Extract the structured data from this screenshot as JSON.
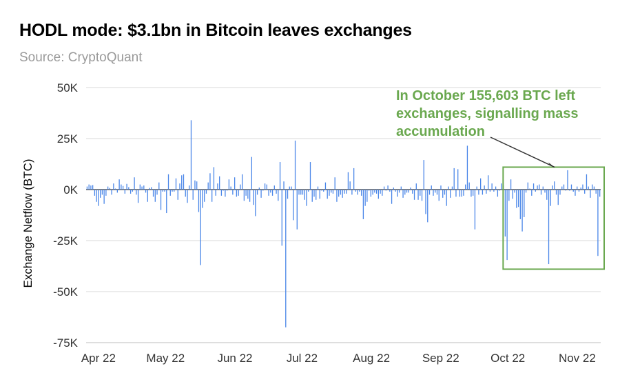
{
  "header": {
    "title": "HODL mode: $3.1bn in Bitcoin leaves exchanges",
    "source": "Source: CryptoQuant"
  },
  "chart_data": {
    "type": "bar",
    "title": "HODL mode: $3.1bn in Bitcoin leaves exchanges",
    "subtitle": "Source: CryptoQuant",
    "ylabel": "Exchange Netflow (BTC)",
    "xlabel": "",
    "ylim": [
      -75000,
      50000
    ],
    "yticks": [
      50000,
      25000,
      0,
      -25000,
      -50000,
      -75000
    ],
    "ytick_labels": [
      "50K",
      "25K",
      "0K",
      "-25K",
      "-50K",
      "-75K"
    ],
    "xtick_labels": [
      "Apr 22",
      "May 22",
      "Jun 22",
      "Jul 22",
      "Aug 22",
      "Sep 22",
      "Oct 22",
      "Nov 22"
    ],
    "grid": true,
    "color": "#4a86e8",
    "x_start": "2022-03-28",
    "x_end": "2022-11-13",
    "annotation": "In October 155,603 BTC left exchanges, signalling mass accumulation",
    "annotation_color": "#6aa84f",
    "highlight_range": [
      "2022-10-01",
      "2022-11-13"
    ],
    "highlight_ylim": [
      -39000,
      11000
    ],
    "values": [
      1500,
      2500,
      2000,
      2200,
      -3000,
      -6000,
      -8000,
      -4000,
      -2500,
      -7000,
      -3000,
      1500,
      800,
      -2500,
      3000,
      500,
      -1500,
      5000,
      2500,
      1800,
      -2000,
      2800,
      1200,
      -2000,
      -1000,
      6000,
      -2500,
      -6500,
      2500,
      1500,
      2000,
      -1500,
      -6000,
      800,
      1200,
      -3500,
      -6000,
      -2500,
      3500,
      -10000,
      -1000,
      -1000,
      -11500,
      7500,
      -3000,
      -1000,
      -1000,
      5500,
      -5000,
      3000,
      7000,
      7500,
      -3500,
      -6500,
      2000,
      34000,
      -5000,
      4500,
      4000,
      -11000,
      -37000,
      -9000,
      -6000,
      -2000,
      3500,
      8000,
      -6000,
      11000,
      -3000,
      3000,
      6500,
      -3000,
      -500,
      -3500,
      -500,
      5000,
      1500,
      -2500,
      6000,
      -3500,
      -3000,
      2500,
      7500,
      -5500,
      -3000,
      -4500,
      -6000,
      16000,
      -7500,
      -13000,
      -2500,
      1000,
      -4000,
      -500,
      3000,
      2500,
      -3000,
      -1500,
      -3000,
      2000,
      -2000,
      -5500,
      13500,
      -27500,
      4000,
      -67500,
      -4500,
      1500,
      1500,
      -15000,
      24000,
      -19500,
      -2500,
      -2500,
      -2500,
      -5000,
      -8000,
      -1000,
      13500,
      -6000,
      -3500,
      -5000,
      1500,
      -4500,
      -500,
      -1000,
      3500,
      -4500,
      -3000,
      -1500,
      -2000,
      6000,
      -6000,
      -3500,
      -2500,
      -4000,
      -2000,
      -2000,
      8500,
      4000,
      -2500,
      10500,
      -1000,
      -2500,
      -1000,
      -3000,
      -14500,
      -8000,
      -6000,
      -500,
      -3500,
      -2500,
      -1500,
      -2000,
      -4500,
      -2000,
      -3000,
      1500,
      -500,
      2000,
      -1000,
      -7000,
      1000,
      -1000,
      -3500,
      -1500,
      1500,
      -4000,
      -2500,
      -1500,
      -1500,
      1000,
      -2000,
      -5000,
      3000,
      -5000,
      -3000,
      -5500,
      14500,
      -12000,
      -16000,
      -2500,
      2000,
      -3000,
      -1500,
      -2500,
      -5500,
      2000,
      -4000,
      -2500,
      -8000,
      1500,
      -4000,
      1500,
      10500,
      -3500,
      10000,
      -3500,
      -3500,
      -3000,
      2500,
      21500,
      3500,
      -3500,
      -3000,
      -19500,
      1500,
      -2500,
      5500,
      -2500,
      2000,
      -2000,
      7000,
      -1000,
      3000,
      -1000,
      1500,
      -3500,
      -500,
      3000,
      2000,
      -23000,
      -34500,
      -5500,
      5000,
      -4500,
      -1500,
      -9000,
      -8500,
      -14500,
      -20500,
      -13500,
      -1500,
      3500,
      500,
      -3000,
      3000,
      -1000,
      2000,
      2500,
      -2500,
      1500,
      -1500,
      -5000,
      -36500,
      -8000,
      2000,
      4000,
      -2500,
      -7500,
      -2500,
      1500,
      2500,
      -500,
      9500,
      -500,
      2500,
      -1000,
      -3000,
      1500,
      -1000,
      1000,
      2500,
      -2000,
      7500,
      1500,
      -4000,
      2500,
      1500,
      -2000,
      -32500,
      -3500
    ]
  }
}
